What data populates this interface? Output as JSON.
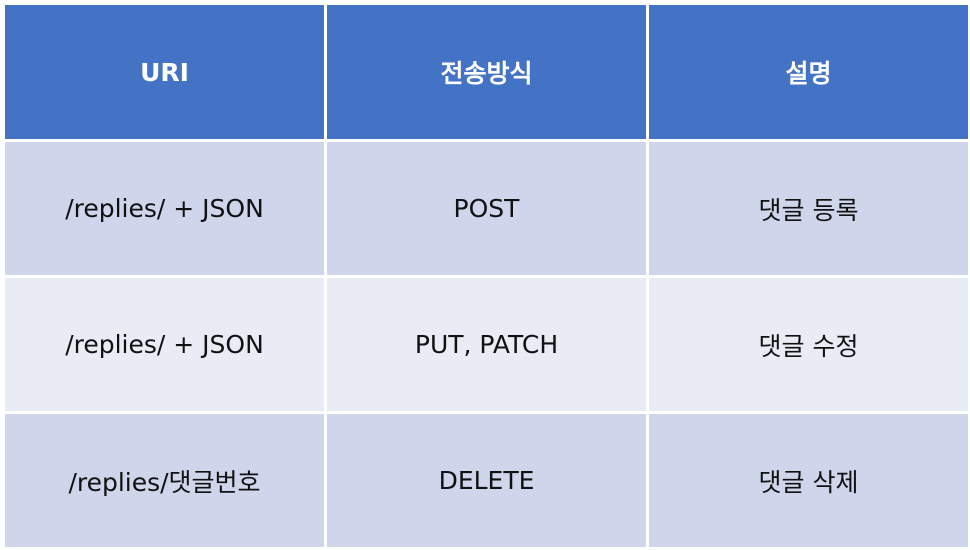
{
  "table": {
    "headers": [
      "URI",
      "전송방식",
      "설명"
    ],
    "rows": [
      [
        "/replies/ + JSON",
        "POST",
        "댓글 등록"
      ],
      [
        "/replies/ + JSON",
        "PUT, PATCH",
        "댓글 수정"
      ],
      [
        "/replies/댓글번호",
        "DELETE",
        "댓글 삭제"
      ]
    ]
  },
  "colors": {
    "header_bg": "#4472c4",
    "row_odd_bg": "#cfd5ea",
    "row_even_bg": "#e9ebf5"
  }
}
